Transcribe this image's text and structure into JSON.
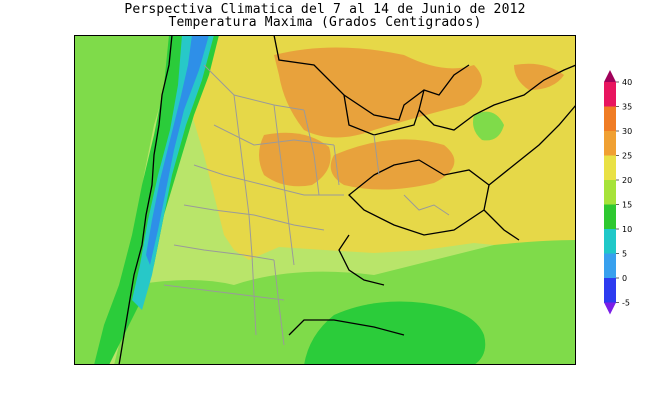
{
  "title": {
    "line1": "Perspectiva Climatica del 7 al 14 de Junio de 2012",
    "line2": "Temperatura Maxima (Grados Centigrados)"
  },
  "colorbar": {
    "ticks": [
      "40",
      "35",
      "30",
      "25",
      "20",
      "15",
      "10",
      "5",
      "0",
      "-5"
    ],
    "colors": [
      "#a0005a",
      "#e8155f",
      "#f07c24",
      "#f0a032",
      "#e9e145",
      "#a6e33a",
      "#2ec830",
      "#20c8c8",
      "#38a0ee",
      "#2c3bf0",
      "#7a1ee6"
    ]
  },
  "map": {
    "colors": {
      "green": "#7fdb4a",
      "green_dark": "#2bcc3a",
      "lightgreen": "#b9e56a",
      "yellow": "#e6d848",
      "orange": "#e8a23c",
      "cyan": "#27c8c8",
      "blue": "#2e8fe8",
      "border": "#9a9a9a",
      "country": "#000000"
    }
  }
}
